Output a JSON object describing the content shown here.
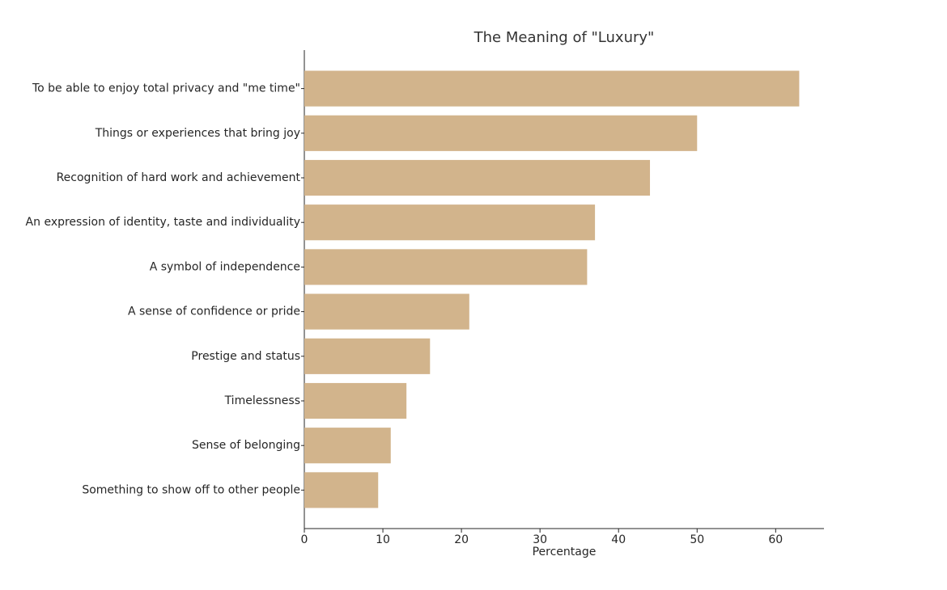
{
  "chart_data": {
    "type": "bar",
    "orientation": "horizontal",
    "title": "The Meaning of \"Luxury\"",
    "x_label": "Percentage",
    "categories": [
      "To be able to enjoy total privacy and \"me time\"",
      "Things or experiences that bring joy",
      "Recognition of hard work and achievement",
      "An expression of identity, taste and individuality",
      "A symbol of independence",
      "A sense of confidence or pride",
      "Prestige and status",
      "Timelessness",
      "Sense of belonging",
      "Something to show off to other people"
    ],
    "values": [
      63,
      50,
      44,
      37,
      36,
      21,
      16,
      13,
      11,
      9.4
    ],
    "color": "#d2b48c",
    "xlim": [
      0,
      66.15
    ],
    "xticks": [
      0,
      10,
      20,
      30,
      40,
      50,
      60
    ],
    "grid": false
  }
}
